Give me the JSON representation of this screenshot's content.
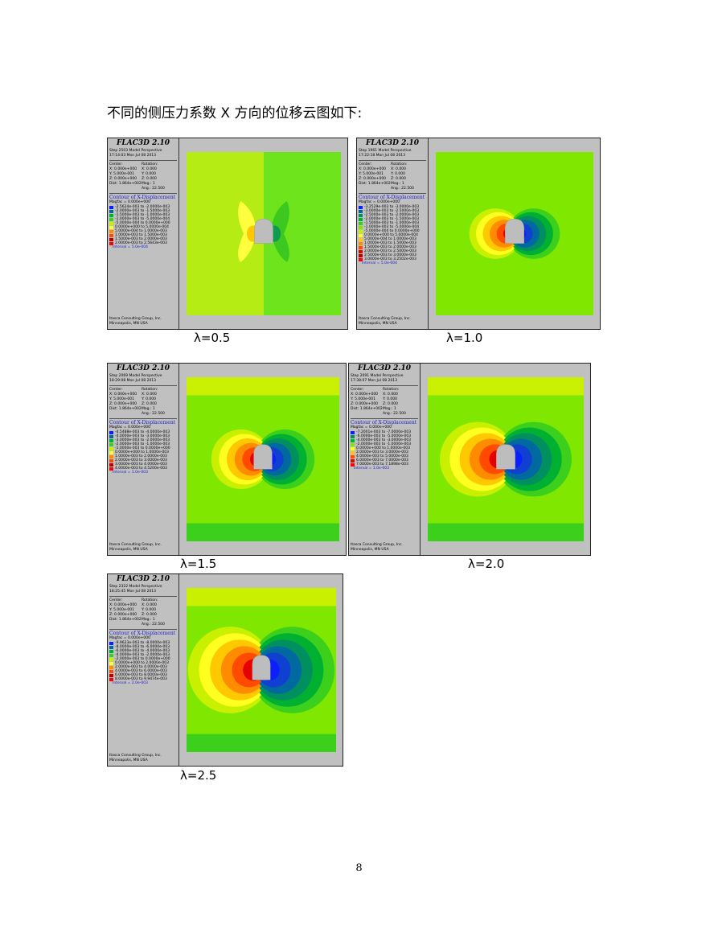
{
  "intro": "不同的侧压力系数 X 方向的位移云图如下:",
  "page_number": "8",
  "figures": [
    {
      "caption": "λ=0.5",
      "title": "FLAC3D 2.10",
      "step": "Step 2503  Model Perspective",
      "time": "17:14:03 Mon Jul 08 2013",
      "center_label": "Center:",
      "rotation_label": "Rotation:",
      "cx": "X: 0.000e+000",
      "rx": "X:  0.000",
      "cy": "Y: 5.000e-001",
      "ry": "Y:  0.000",
      "cz": "Z: 0.000e+000",
      "rz": "Z:  0.000",
      "dist": "Dist: 1.864e+002",
      "mag": "Mag.:      1",
      "ang": "Ang.:  22.500",
      "contour": "Contour of X-Displacement",
      "magfac": "Magfac = 0.000e+000",
      "legend": [
        "-2.5624e-003 to -2.0000e-003",
        "-2.0000e-003 to -1.5000e-003",
        "-1.5000e-003 to -1.0000e-003",
        "-1.0000e-003 to -5.0000e-004",
        "-5.0000e-004 to  0.0000e+000",
        " 0.0000e+000 to  5.0000e-004",
        " 5.0000e-004 to  1.0000e-003",
        " 1.0000e-003 to  1.5000e-003",
        " 1.5000e-003 to  2.0000e-003",
        " 2.0000e-003 to  2.5643e-003"
      ],
      "interval": "Interval = 5.0e-004",
      "credit1": "Itasca Consulting Group, Inc.",
      "credit2": "Minneapolis, MN  USA"
    },
    {
      "caption": "λ=1.0",
      "title": "FLAC3D 2.10",
      "step": "Step 1961  Model Perspective",
      "time": "17:22:18 Mon Jul 08 2013",
      "center_label": "Center:",
      "rotation_label": "Rotation:",
      "cx": "X: 0.000e+000",
      "rx": "X:  0.000",
      "cy": "Y: 5.000e-001",
      "ry": "Y:  0.000",
      "cz": "Z: 0.000e+000",
      "rz": "Z:  0.000",
      "dist": "Dist: 1.864e+002",
      "mag": "Mag.:      1",
      "ang": "Ang.:  22.500",
      "contour": "Contour of X-Displacement",
      "magfac": "Magfac = 0.000e+000",
      "legend": [
        "-3.2529e-003 to -3.0000e-003",
        "-3.0000e-003 to -2.5000e-003",
        "-2.5000e-003 to -2.0000e-003",
        "-2.0000e-003 to -1.5000e-003",
        "-1.5000e-003 to -1.0000e-003",
        "-1.0000e-003 to -5.0000e-004",
        "-5.0000e-004 to  0.0000e+000",
        " 0.0000e+000 to  5.0000e-004",
        " 5.0000e-004 to  1.0000e-003",
        " 1.0000e-003 to  1.5000e-003",
        " 1.5000e-003 to  2.0000e-003",
        " 2.0000e-003 to  2.5000e-003",
        " 2.5000e-003 to  3.0000e-003",
        " 3.0000e-003 to  3.2502e-003"
      ],
      "interval": "Interval = 5.0e-004",
      "credit1": "Itasca Consulting Group, Inc.",
      "credit2": "Minneapolis, MN  USA"
    },
    {
      "caption": "λ=1.5",
      "title": "FLAC3D 2.10",
      "step": "Step 2069  Model Perspective",
      "time": "18:29:08 Mon Jul 08 2013",
      "center_label": "Center:",
      "rotation_label": "Rotation:",
      "cx": "X: 0.000e+000",
      "rx": "X:  0.000",
      "cy": "Y: 5.000e-001",
      "ry": "Y:  0.000",
      "cz": "Z: 0.000e+000",
      "rz": "Z:  0.000",
      "dist": "Dist: 1.864e+002",
      "mag": "Mag.:      1",
      "ang": "Ang.:  22.500",
      "contour": "Contour of X-Displacement",
      "magfac": "Magfac = 0.000e+000",
      "legend": [
        "-4.5488e-003 to -4.0000e-003",
        "-4.0000e-003 to -3.0000e-003",
        "-3.0000e-003 to -2.0000e-003",
        "-2.0000e-003 to -1.0000e-003",
        "-1.0000e-003 to  0.0000e+000",
        " 0.0000e+000 to  1.0000e-003",
        " 1.0000e-003 to  2.0000e-003",
        " 2.0000e-003 to  3.0000e-003",
        " 3.0000e-003 to  4.0000e-003",
        " 4.0000e-003 to  4.5200e-003"
      ],
      "interval": "Interval = 1.0e-003",
      "credit1": "Itasca Consulting Group, Inc.",
      "credit2": "Minneapolis, MN  USA"
    },
    {
      "caption": "λ=2.0",
      "title": "FLAC3D 2.10",
      "step": "Step 2091  Model Perspective",
      "time": "17:38:07 Mon Jul 08 2013",
      "center_label": "Center:",
      "rotation_label": "Rotation:",
      "cx": "X: 0.000e+000",
      "rx": "X:  0.000",
      "cy": "Y: 5.000e-001",
      "ry": "Y:  0.000",
      "cz": "Z: 0.000e+000",
      "rz": "Z:  0.000",
      "dist": "Dist: 1.864e+002",
      "mag": "Mag.:      1",
      "ang": "Ang.:  22.500",
      "contour": "Contour of X-Displacement",
      "magfac": "Magfac = 0.000e+000",
      "legend": [
        "-7.2001e-003 to -7.0000e-003",
        "-6.0000e-003 to -5.0000e-003",
        "-4.0000e-003 to -3.0000e-003",
        "-2.0000e-003 to -1.0000e-003",
        " 0.0000e+000 to  1.0000e-003",
        " 2.0000e-003 to  3.0000e-003",
        " 4.0000e-003 to  5.0000e-003",
        " 6.0000e-003 to  7.0000e-003",
        " 7.0000e-003 to  7.1898e-003"
      ],
      "interval": "Interval = 1.0e-003",
      "credit1": "Itasca Consulting Group, Inc.",
      "credit2": "Minneapolis, MN  USA"
    },
    {
      "caption": "λ=2.5",
      "title": "FLAC3D 2.10",
      "step": "Step 2322  Model Perspective",
      "time": "18:25:45 Mon Jul 08 2013",
      "center_label": "Center:",
      "rotation_label": "Rotation:",
      "cx": "X: 0.000e+000",
      "rx": "X:  0.000",
      "cy": "Y: 5.000e-001",
      "ry": "Y:  0.000",
      "cz": "Z: 0.000e+000",
      "rz": "Z:  0.000",
      "dist": "Dist: 1.864e+002",
      "mag": "Mag.:      1",
      "ang": "Ang.:  22.500",
      "contour": "Contour of X-Displacement",
      "magfac": "Magfac = 0.000e+000",
      "legend": [
        "-9.9623e-003 to -8.0000e-003",
        "-8.0000e-003 to -6.0000e-003",
        "-6.0000e-003 to -4.0000e-003",
        "-4.0000e-003 to -2.0000e-003",
        "-2.0000e-003 to  0.0000e+000",
        " 0.0000e+000 to  2.0000e-003",
        " 2.0000e-003 to  4.0000e-003",
        " 4.0000e-003 to  6.0000e-003",
        " 6.0000e-003 to  8.0000e-003",
        " 8.0000e-003 to  9.9474e-003"
      ],
      "interval": "Interval = 2.0e-003",
      "credit1": "Itasca Consulting Group, Inc.",
      "credit2": "Minneapolis, MN  USA"
    }
  ],
  "colors": {
    "scale": [
      "#0a20ff",
      "#006aa0",
      "#009060",
      "#00b030",
      "#3cd01c",
      "#80e800",
      "#c8f000",
      "#ffff20",
      "#ffc800",
      "#ff8c00",
      "#ff4a00",
      "#e60000",
      "#b40000",
      "#ff0000"
    ]
  }
}
